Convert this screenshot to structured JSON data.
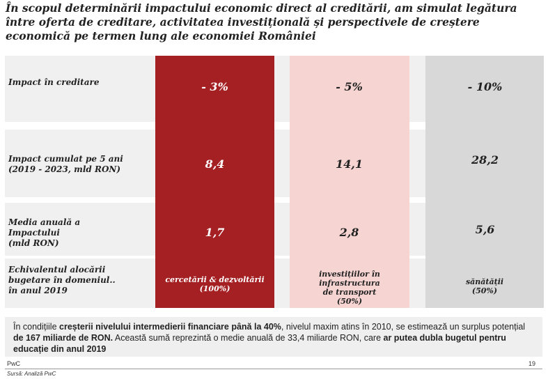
{
  "title": "În scopul determinării impactului economic direct al creditării, am simulat legătura între oferta de creditare, activitatea investițională și perspectivele de creștere economică pe termen lung ale economiei României",
  "rows": {
    "impact_label": "Impact în creditare",
    "cumulat_line1": "Impact cumulat pe 5 ani",
    "cumulat_line2": "(2019 - 2023, mld RON)",
    "media_line1": "Media anuală a",
    "media_line2": "Impactului",
    "media_line3": "(mld RON)",
    "echiv_line1": "Echivalentul alocării",
    "echiv_line2": "bugetare în domeniul..",
    "echiv_line3": "în anul 2019"
  },
  "columns": [
    {
      "impact": "- 3%",
      "cumulat": "8,4",
      "media": "1,7",
      "domain_line1": "cercetării & dezvoltării",
      "domain_line2": "(100%)",
      "color": "#a52023"
    },
    {
      "impact": "- 5%",
      "cumulat": "14,1",
      "media": "2,8",
      "domain_line1": "investițiilor în",
      "domain_line2": "infrastructura",
      "domain_line3": "de transport",
      "domain_line4": "(50%)",
      "color": "#f5d4d2"
    },
    {
      "impact": "- 10%",
      "cumulat": "28,2",
      "media": "5,6",
      "domain_line1": "sănătății",
      "domain_line2": "(50%)",
      "color": "#d8d8d8"
    }
  ],
  "note": {
    "p1": "În condițiile ",
    "b1": "creșterii nivelului intermedierii financiare  până la 40%",
    "p2": ", nivelul maxim atins în 2010, se estimează  un surplus potențial ",
    "b2": "de 167 miliarde de RON.",
    "p3": " Această sumă reprezintă o medie anuală de 33,4 miliarde RON, care ",
    "b3": "ar putea dubla bugetul pentru educație din anul 2019"
  },
  "footer": {
    "brand": "PwC",
    "source": "Sursă: Analiză PwC",
    "page": "19"
  }
}
